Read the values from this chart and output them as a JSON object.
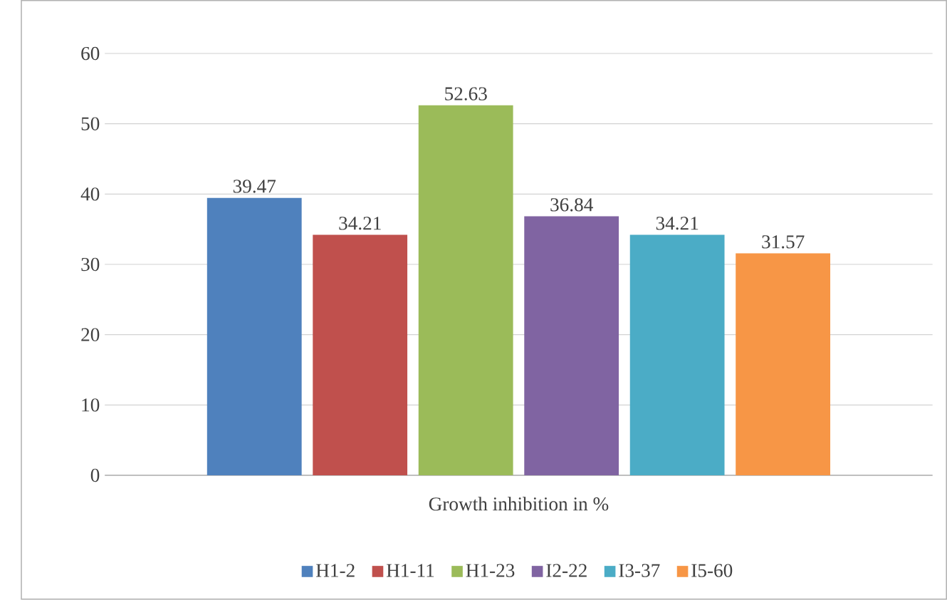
{
  "chart_data": {
    "type": "bar",
    "xlabel": null,
    "categories": [
      "Growth inhibition in %"
    ],
    "series": [
      {
        "name": "H1-2",
        "color": "#4f81bd",
        "values": [
          39.47
        ]
      },
      {
        "name": "H1-11",
        "color": "#c0504d",
        "values": [
          34.21
        ]
      },
      {
        "name": "H1-23",
        "color": "#9bbb59",
        "values": [
          52.63
        ]
      },
      {
        "name": "I2-22",
        "color": "#8064a2",
        "values": [
          36.84
        ]
      },
      {
        "name": "I3-37",
        "color": "#4bacc6",
        "values": [
          34.21
        ]
      },
      {
        "name": "I5-60",
        "color": "#f79646",
        "values": [
          31.57
        ]
      }
    ],
    "ylim": [
      0,
      60
    ],
    "yticks": [
      0,
      10,
      20,
      30,
      40,
      50,
      60
    ],
    "grid": "y",
    "legend": "bottom",
    "data_labels": true
  }
}
